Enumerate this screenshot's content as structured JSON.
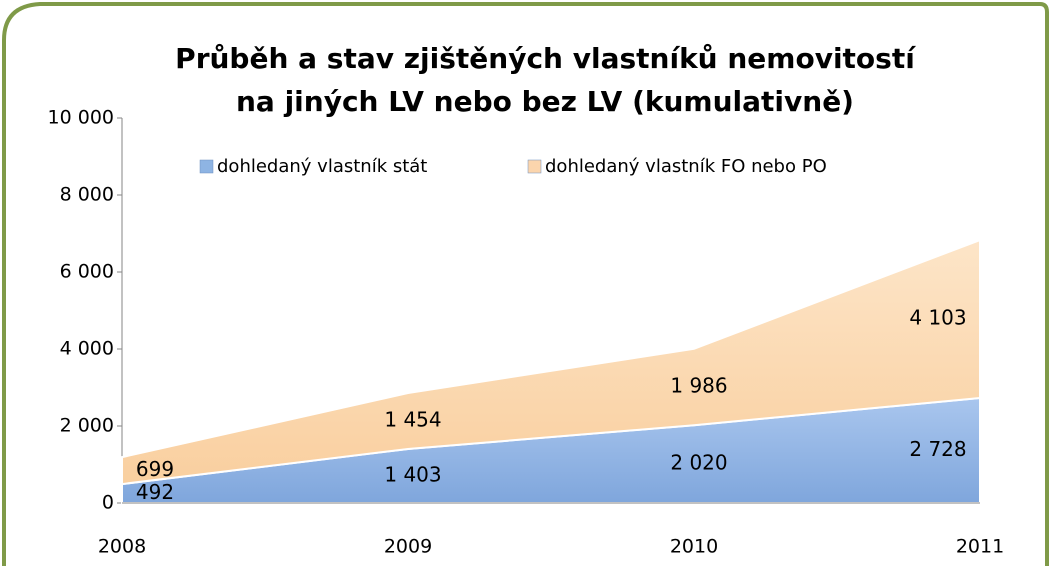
{
  "chart_data": {
    "type": "stacked_area",
    "title": [
      "Průběh a stav zjištěných vlastníků nemovitostí",
      "na jiných LV nebo bez LV (kumulativně)"
    ],
    "categories": [
      "2008",
      "2009",
      "2010",
      "2011"
    ],
    "series": [
      {
        "name": "dohledaný vlastník stát",
        "color": "#8eb4e3",
        "values": [
          492,
          1403,
          2020,
          2728
        ],
        "value_labels": [
          "492",
          "1 403",
          "2 020",
          "2 728"
        ]
      },
      {
        "name": "dohledaný vlastník FO nebo PO",
        "color": "#fbd5ad",
        "values": [
          699,
          1454,
          1986,
          4103
        ],
        "value_labels": [
          "699",
          "1 454",
          "1 986",
          "4 103"
        ]
      }
    ],
    "ylim": [
      0,
      10000
    ],
    "yticks": [
      0,
      {
        "value": 2000,
        "label": "2 000"
      },
      {
        "value": 4000,
        "label": "4 000"
      },
      {
        "value": 6000,
        "label": "6 000"
      },
      {
        "value": 8000,
        "label": "8 000"
      },
      {
        "value": 10000,
        "label": "10 000"
      }
    ],
    "legend": "top"
  }
}
